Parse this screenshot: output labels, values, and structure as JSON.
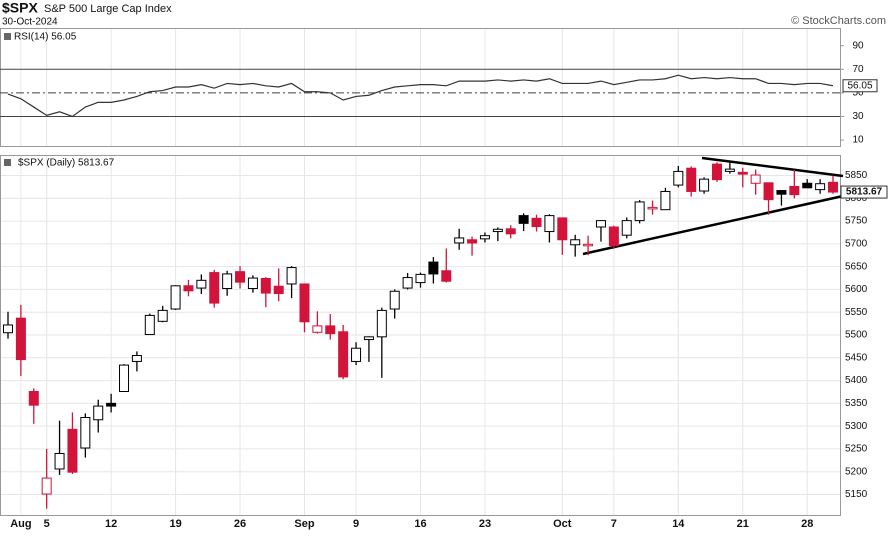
{
  "header": {
    "title": "$SPX",
    "subtitle": "S&P 500 Large Cap Index",
    "date": "30-Oct-2024",
    "credit": "© StockCharts.com"
  },
  "chart_data": [
    {
      "type": "line",
      "title": "RSI(14) 56.05",
      "color": "#333333",
      "values": [
        49,
        45,
        38,
        31,
        34,
        30,
        38,
        42,
        42,
        44,
        47,
        51,
        52,
        55,
        55,
        57,
        54,
        58,
        57,
        58,
        56,
        55,
        58,
        51,
        51,
        50,
        44,
        47,
        48,
        52,
        55,
        56,
        57,
        57,
        56,
        60,
        60,
        60,
        61,
        60,
        61,
        60,
        62,
        58,
        58,
        58,
        60,
        57,
        59,
        61,
        61,
        62,
        65,
        62,
        63,
        62,
        63,
        62,
        62,
        58,
        58,
        57,
        58,
        58,
        56.05
      ],
      "last_label": "56.05",
      "ylim": [
        5,
        105
      ],
      "yticks": [
        10,
        30,
        50,
        70,
        90
      ],
      "overbought": 70,
      "oversold": 30,
      "midline": 50
    },
    {
      "type": "candlestick",
      "title": "$SPX (Daily) 5813.67",
      "categories": [
        null,
        "Aug",
        null,
        "5",
        null,
        null,
        null,
        null,
        "12",
        null,
        null,
        null,
        null,
        "19",
        null,
        null,
        null,
        null,
        "26",
        null,
        null,
        null,
        null,
        "Sep",
        null,
        null,
        null,
        "9",
        null,
        null,
        null,
        null,
        "16",
        null,
        null,
        null,
        null,
        "23",
        null,
        null,
        null,
        null,
        null,
        "Oct",
        null,
        null,
        null,
        "7",
        null,
        null,
        null,
        null,
        "14",
        null,
        null,
        null,
        null,
        "21",
        null,
        null,
        null,
        null,
        "28",
        null,
        null
      ],
      "open": [
        5505,
        5537,
        5376,
        5151,
        5206,
        5293,
        5252,
        5314,
        5350,
        5376,
        5442,
        5501,
        5530,
        5557,
        5608,
        5603,
        5637,
        5602,
        5639,
        5602,
        5624,
        5607,
        5612,
        5612,
        5506,
        5520,
        5507,
        5442,
        5490,
        5496,
        5557,
        5603,
        5615,
        5660,
        5641,
        5702,
        5709,
        5711,
        5727,
        5733,
        5762,
        5756,
        5727,
        5757,
        5698,
        5698,
        5737,
        5737,
        5719,
        5751,
        5778,
        5775,
        5829,
        5866,
        5816,
        5875,
        5859,
        5857,
        5833,
        5834,
        5817,
        5826,
        5833,
        5819,
        5835
      ],
      "high": [
        5551,
        5566,
        5383,
        5250,
        5312,
        5330,
        5328,
        5358,
        5371,
        5436,
        5464,
        5547,
        5564,
        5609,
        5621,
        5633,
        5643,
        5641,
        5651,
        5631,
        5627,
        5646,
        5651,
        5612,
        5552,
        5546,
        5522,
        5484,
        5497,
        5560,
        5600,
        5636,
        5637,
        5671,
        5690,
        5733,
        5716,
        5725,
        5736,
        5741,
        5767,
        5764,
        5765,
        5758,
        5720,
        5718,
        5752,
        5740,
        5758,
        5796,
        5795,
        5823,
        5871,
        5870,
        5846,
        5879,
        5878,
        5867,
        5863,
        5834,
        5818,
        5862,
        5842,
        5842,
        5850
      ],
      "low": [
        5492,
        5410,
        5305,
        5119,
        5193,
        5195,
        5231,
        5286,
        5330,
        5376,
        5420,
        5501,
        5528,
        5555,
        5585,
        5590,
        5560,
        5586,
        5602,
        5593,
        5561,
        5574,
        5581,
        5506,
        5503,
        5490,
        5403,
        5434,
        5441,
        5406,
        5536,
        5600,
        5604,
        5613,
        5615,
        5687,
        5674,
        5703,
        5706,
        5712,
        5728,
        5727,
        5703,
        5676,
        5672,
        5675,
        5705,
        5689,
        5712,
        5745,
        5764,
        5775,
        5824,
        5804,
        5810,
        5836,
        5854,
        5824,
        5808,
        5764,
        5784,
        5800,
        5823,
        5810,
        5810
      ],
      "close": [
        5522,
        5446,
        5346,
        5186,
        5240,
        5199,
        5319,
        5344,
        5344,
        5434,
        5455,
        5543,
        5554,
        5608,
        5597,
        5620,
        5570,
        5634,
        5616,
        5625,
        5592,
        5591,
        5648,
        5529,
        5520,
        5503,
        5408,
        5471,
        5496,
        5554,
        5596,
        5626,
        5633,
        5634,
        5618,
        5713,
        5702,
        5718,
        5732,
        5722,
        5745,
        5738,
        5762,
        5709,
        5709,
        5699,
        5751,
        5696,
        5751,
        5792,
        5780,
        5815,
        5859,
        5815,
        5842,
        5841,
        5864,
        5853,
        5851,
        5797,
        5809,
        5808,
        5823,
        5832,
        5813.67
      ],
      "up_color": "#000000",
      "down_color": "#d2143a",
      "last_label": "5813.67",
      "ylim": [
        5105,
        5895
      ],
      "yticks": [
        5150,
        5200,
        5250,
        5300,
        5350,
        5400,
        5450,
        5500,
        5550,
        5600,
        5650,
        5700,
        5750,
        5800,
        5850
      ],
      "grid": true
    }
  ]
}
